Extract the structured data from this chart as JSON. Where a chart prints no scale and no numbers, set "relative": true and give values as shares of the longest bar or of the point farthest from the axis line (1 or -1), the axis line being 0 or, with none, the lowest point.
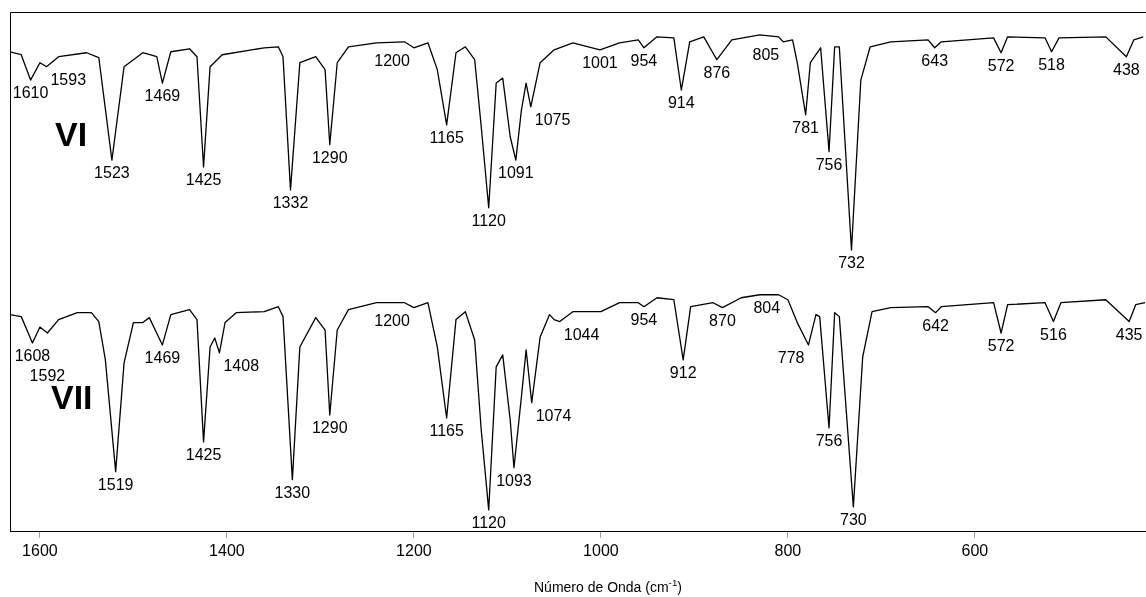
{
  "chart_data": {
    "type": "line",
    "relative": true,
    "xlabel": "Número de Onda (cm$^{-1}$)",
    "xlim": [
      1632,
      417
    ],
    "xticks": [
      1600,
      1400,
      1200,
      1000,
      800,
      600
    ],
    "grid": false,
    "legend": false,
    "marker": "none",
    "line_style": "solid",
    "series": [
      {
        "name": "VI",
        "color": "#000000",
        "x": [
          1632,
          1620,
          1610,
          1600,
          1593,
          1580,
          1550,
          1537,
          1523,
          1510,
          1490,
          1475,
          1469,
          1460,
          1440,
          1432,
          1425,
          1418,
          1405,
          1360,
          1345,
          1340,
          1332,
          1322,
          1305,
          1295,
          1290,
          1282,
          1270,
          1240,
          1210,
          1200,
          1185,
          1175,
          1165,
          1155,
          1145,
          1135,
          1128,
          1120,
          1112,
          1105,
          1097,
          1091,
          1085,
          1080,
          1075,
          1065,
          1050,
          1030,
          1001,
          980,
          960,
          954,
          940,
          922,
          914,
          905,
          890,
          876,
          860,
          830,
          810,
          805,
          795,
          790,
          781,
          776,
          765,
          756,
          750,
          745,
          732,
          722,
          712,
          690,
          650,
          643,
          636,
          580,
          572,
          565,
          525,
          518,
          510,
          460,
          438,
          430,
          420
        ],
        "values": [
          0.966,
          0.96,
          0.909,
          0.944,
          0.936,
          0.956,
          0.964,
          0.954,
          0.748,
          0.936,
          0.964,
          0.956,
          0.903,
          0.966,
          0.972,
          0.956,
          0.734,
          0.936,
          0.96,
          0.974,
          0.976,
          0.956,
          0.688,
          0.944,
          0.956,
          0.93,
          0.779,
          0.944,
          0.976,
          0.984,
          0.986,
          0.974,
          0.984,
          0.93,
          0.819,
          0.964,
          0.976,
          0.95,
          0.815,
          0.652,
          0.903,
          0.913,
          0.795,
          0.748,
          0.849,
          0.903,
          0.855,
          0.944,
          0.97,
          0.984,
          0.97,
          0.984,
          0.99,
          0.974,
          0.996,
          0.994,
          0.889,
          0.986,
          0.996,
          0.95,
          0.99,
          1.0,
          0.996,
          0.986,
          0.99,
          0.944,
          0.839,
          0.944,
          0.974,
          0.765,
          0.976,
          0.976,
          0.567,
          0.909,
          0.976,
          0.986,
          0.99,
          0.974,
          0.986,
          0.994,
          0.964,
          0.996,
          0.994,
          0.966,
          0.994,
          0.996,
          0.956,
          0.99,
          0.996
        ]
      },
      {
        "name": "VII",
        "color": "#000000",
        "x": [
          1632,
          1620,
          1608,
          1600,
          1592,
          1580,
          1560,
          1545,
          1537,
          1530,
          1519,
          1510,
          1500,
          1490,
          1483,
          1469,
          1460,
          1440,
          1432,
          1425,
          1418,
          1413,
          1408,
          1402,
          1390,
          1360,
          1345,
          1340,
          1330,
          1322,
          1305,
          1295,
          1290,
          1282,
          1270,
          1240,
          1210,
          1200,
          1185,
          1175,
          1165,
          1155,
          1145,
          1135,
          1128,
          1120,
          1112,
          1105,
          1097,
          1093,
          1085,
          1080,
          1074,
          1065,
          1055,
          1050,
          1044,
          1030,
          1000,
          980,
          960,
          954,
          940,
          922,
          912,
          904,
          880,
          870,
          850,
          830,
          810,
          800,
          790,
          778,
          770,
          766,
          756,
          750,
          745,
          730,
          720,
          710,
          690,
          650,
          642,
          636,
          580,
          572,
          565,
          525,
          516,
          508,
          460,
          435,
          428,
          418
        ],
        "values": [
          0.437,
          0.433,
          0.38,
          0.412,
          0.4,
          0.427,
          0.441,
          0.441,
          0.423,
          0.346,
          0.121,
          0.34,
          0.421,
          0.421,
          0.431,
          0.376,
          0.437,
          0.447,
          0.427,
          0.181,
          0.372,
          0.39,
          0.36,
          0.421,
          0.441,
          0.443,
          0.453,
          0.433,
          0.105,
          0.372,
          0.431,
          0.406,
          0.235,
          0.406,
          0.447,
          0.461,
          0.461,
          0.451,
          0.461,
          0.372,
          0.229,
          0.427,
          0.443,
          0.386,
          0.205,
          0.044,
          0.332,
          0.356,
          0.225,
          0.129,
          0.272,
          0.366,
          0.26,
          0.392,
          0.437,
          0.427,
          0.423,
          0.443,
          0.443,
          0.461,
          0.461,
          0.453,
          0.471,
          0.467,
          0.346,
          0.453,
          0.461,
          0.451,
          0.471,
          0.477,
          0.477,
          0.467,
          0.421,
          0.376,
          0.437,
          0.433,
          0.209,
          0.441,
          0.433,
          0.05,
          0.352,
          0.443,
          0.451,
          0.453,
          0.441,
          0.453,
          0.461,
          0.4,
          0.457,
          0.461,
          0.423,
          0.461,
          0.467,
          0.423,
          0.457,
          0.461
        ]
      }
    ],
    "annotations": [
      {
        "text": "1610",
        "x": 1610,
        "y": 0.909
      },
      {
        "text": "1593",
        "x": 1593,
        "y": 0.936
      },
      {
        "text": "1523",
        "x": 1523,
        "y": 0.748
      },
      {
        "text": "1469",
        "x": 1469,
        "y": 0.903
      },
      {
        "text": "1425",
        "x": 1425,
        "y": 0.734
      },
      {
        "text": "1332",
        "x": 1332,
        "y": 0.688
      },
      {
        "text": "1290",
        "x": 1290,
        "y": 0.779
      },
      {
        "text": "1200",
        "x": 1200,
        "y": 0.974
      },
      {
        "text": "1165",
        "x": 1165,
        "y": 0.819
      },
      {
        "text": "1120",
        "x": 1120,
        "y": 0.652
      },
      {
        "text": "1091",
        "x": 1091,
        "y": 0.748
      },
      {
        "text": "1075",
        "x": 1075,
        "y": 0.855
      },
      {
        "text": "1001",
        "x": 1001,
        "y": 0.97
      },
      {
        "text": "954",
        "x": 954,
        "y": 0.974
      },
      {
        "text": "914",
        "x": 914,
        "y": 0.889
      },
      {
        "text": "876",
        "x": 876,
        "y": 0.95
      },
      {
        "text": "805",
        "x": 805,
        "y": 0.986
      },
      {
        "text": "781",
        "x": 781,
        "y": 0.839
      },
      {
        "text": "756",
        "x": 756,
        "y": 0.765
      },
      {
        "text": "732",
        "x": 732,
        "y": 0.567
      },
      {
        "text": "643",
        "x": 643,
        "y": 0.974
      },
      {
        "text": "572",
        "x": 572,
        "y": 0.964
      },
      {
        "text": "518",
        "x": 518,
        "y": 0.966
      },
      {
        "text": "438",
        "x": 438,
        "y": 0.956
      },
      {
        "text": "1608",
        "x": 1608,
        "y": 0.38
      },
      {
        "text": "1592",
        "x": 1592,
        "y": 0.4
      },
      {
        "text": "1519",
        "x": 1519,
        "y": 0.121
      },
      {
        "text": "1469",
        "x": 1469,
        "y": 0.376
      },
      {
        "text": "1408",
        "x": 1408,
        "y": 0.36
      },
      {
        "text": "1425",
        "x": 1425,
        "y": 0.181
      },
      {
        "text": "1330",
        "x": 1330,
        "y": 0.105
      },
      {
        "text": "1290",
        "x": 1290,
        "y": 0.235
      },
      {
        "text": "1200",
        "x": 1200,
        "y": 0.451
      },
      {
        "text": "1165",
        "x": 1165,
        "y": 0.229
      },
      {
        "text": "1120",
        "x": 1120,
        "y": 0.044
      },
      {
        "text": "1093",
        "x": 1093,
        "y": 0.129
      },
      {
        "text": "1074",
        "x": 1074,
        "y": 0.26
      },
      {
        "text": "1044",
        "x": 1044,
        "y": 0.423
      },
      {
        "text": "954",
        "x": 954,
        "y": 0.453
      },
      {
        "text": "912",
        "x": 912,
        "y": 0.346
      },
      {
        "text": "870",
        "x": 870,
        "y": 0.451
      },
      {
        "text": "804",
        "x": 804,
        "y": 0.477
      },
      {
        "text": "778",
        "x": 778,
        "y": 0.376
      },
      {
        "text": "756",
        "x": 756,
        "y": 0.209
      },
      {
        "text": "730",
        "x": 730,
        "y": 0.05
      },
      {
        "text": "642",
        "x": 642,
        "y": 0.441
      },
      {
        "text": "572",
        "x": 572,
        "y": 0.4
      },
      {
        "text": "516",
        "x": 516,
        "y": 0.423
      },
      {
        "text": "435",
        "x": 435,
        "y": 0.423
      }
    ]
  }
}
